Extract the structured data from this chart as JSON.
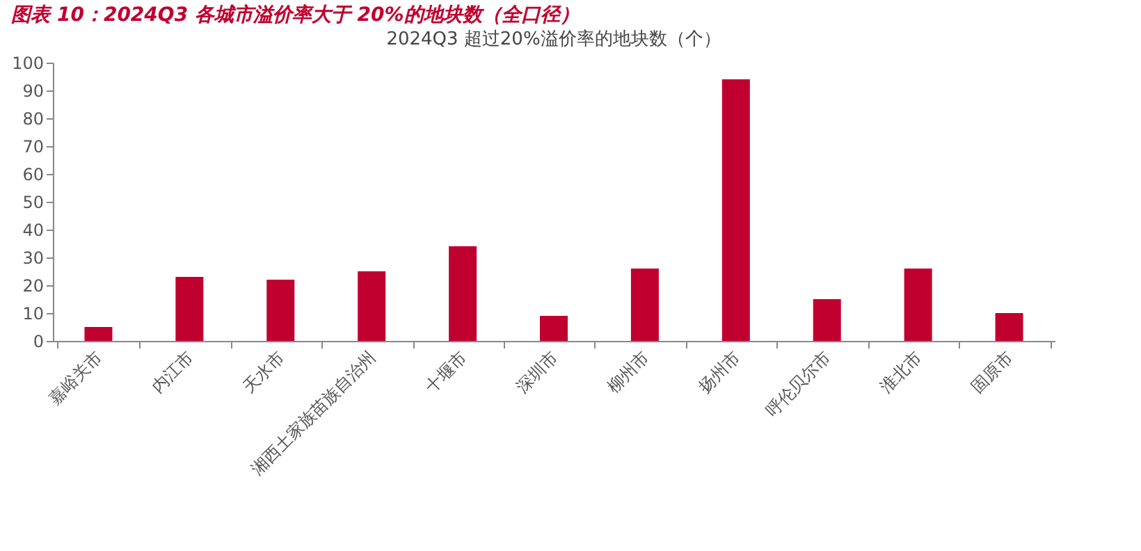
{
  "chart_data": {
    "type": "bar",
    "title": "图表 10：2024Q3 各城市溢价率大于 20%的地块数（全口径）",
    "subtitle": "2024Q3 超过20%溢价率的地块数（个）",
    "categories": [
      "嘉峪关市",
      "内江市",
      "天水市",
      "湘西土家族苗族自治州",
      "十堰市",
      "深圳市",
      "柳州市",
      "扬州市",
      "呼伦贝尔市",
      "淮北市",
      "固原市"
    ],
    "values": [
      5,
      23,
      22,
      25,
      34,
      9,
      26,
      94,
      15,
      26,
      10
    ],
    "color": "#c0002f",
    "ylim": [
      0,
      100
    ],
    "yticks": [
      0,
      10,
      20,
      30,
      40,
      50,
      60,
      70,
      80,
      90,
      100
    ],
    "grid": false
  }
}
